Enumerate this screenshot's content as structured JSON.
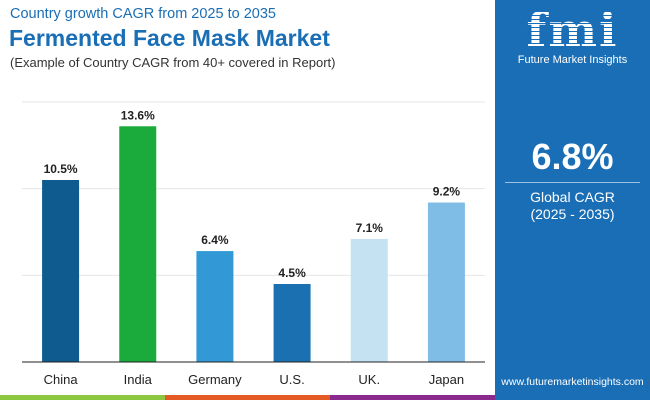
{
  "header": {
    "subtitle": "Country growth CAGR from 2025 to 2035",
    "title": "Fermented Face Mask Market",
    "note": "(Example of Country CAGR from 40+ covered in Report)"
  },
  "panel": {
    "logo_mark": "fmi",
    "logo_text": "Future Market Insights",
    "global_cagr": "6.8%",
    "global_cagr_label": "Global CAGR",
    "global_cagr_years": "(2025 - 2035)",
    "url": "www.futuremarketinsights.com",
    "background": "#1a6eb5"
  },
  "chart_data": {
    "type": "bar",
    "categories": [
      "China",
      "India",
      "Germany",
      "U.S.",
      "UK.",
      "Japan"
    ],
    "values": [
      10.5,
      13.6,
      6.4,
      4.5,
      7.1,
      9.2
    ],
    "data_labels": [
      "10.5%",
      "13.6%",
      "6.4%",
      "4.5%",
      "7.1%",
      "9.2%"
    ],
    "colors": [
      "#0f5a8e",
      "#1aab3c",
      "#3399d6",
      "#1a70b0",
      "#c5e2f3",
      "#7fbde6"
    ],
    "ylim": [
      0,
      15
    ],
    "grid": true,
    "xlabel": "",
    "ylabel": ""
  },
  "stripes": [
    "#8dc63f",
    "#e35a24",
    "#8a2a8c"
  ]
}
